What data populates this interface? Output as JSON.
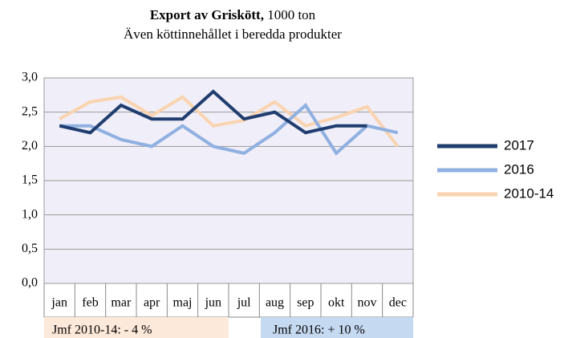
{
  "chart_data": {
    "type": "line",
    "title": "Export av Griskött,",
    "title_suffix": "1000 ton",
    "subtitle": "Även köttinnehållet i beredda produkter",
    "categories": [
      "jan",
      "feb",
      "mar",
      "apr",
      "maj",
      "jun",
      "jul",
      "aug",
      "sep",
      "okt",
      "nov",
      "dec"
    ],
    "series": [
      {
        "name": "2017",
        "color": "#1f3d6e",
        "values": [
          2.3,
          2.2,
          2.6,
          2.4,
          2.4,
          2.8,
          2.4,
          2.5,
          2.2,
          2.3,
          2.3,
          null
        ]
      },
      {
        "name": "2016",
        "color": "#8fb0e0",
        "values": [
          2.3,
          2.3,
          2.1,
          2.0,
          2.3,
          2.0,
          1.9,
          2.2,
          2.6,
          1.9,
          2.3,
          2.2
        ]
      },
      {
        "name": "2010-14",
        "color": "#fad4b0",
        "values": [
          2.4,
          2.65,
          2.72,
          2.45,
          2.72,
          2.3,
          2.38,
          2.65,
          2.3,
          2.42,
          2.58,
          2.0
        ]
      }
    ],
    "ylim": [
      0,
      3
    ],
    "yticks": [
      {
        "value": 0,
        "label": "0,0"
      },
      {
        "value": 0.5,
        "label": "0,5"
      },
      {
        "value": 1,
        "label": "1,0"
      },
      {
        "value": 1.5,
        "label": "1,5"
      },
      {
        "value": 2,
        "label": "2,0"
      },
      {
        "value": 2.5,
        "label": "2,5"
      },
      {
        "value": 3,
        "label": "3,0"
      }
    ],
    "grid": true,
    "legend": "right",
    "annotations": [
      {
        "text": "Jmf 2010-14: - 4 %",
        "color": "#fde9d9"
      },
      {
        "text": "Jmf 2016: + 10 %",
        "color": "#c5d9f1"
      }
    ]
  }
}
